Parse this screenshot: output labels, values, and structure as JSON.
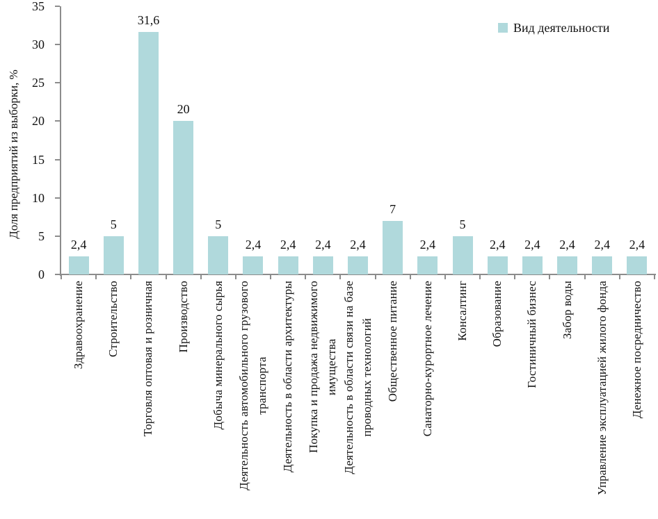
{
  "chart_data": {
    "type": "bar",
    "title": "",
    "xlabel": "",
    "ylabel": "Доля предприятий из выборки, %",
    "ylim": [
      0,
      35
    ],
    "yticks": [
      0,
      5,
      10,
      15,
      20,
      25,
      30,
      35
    ],
    "grid": false,
    "legend": {
      "position": "top-right",
      "label": "Вид деятельности",
      "swatch_color": "#b0d9dc"
    },
    "bar_color": "#b0d9dc",
    "axis_color": "#8c8c8c",
    "categories": [
      "Здравоохранение",
      "Строительство",
      "Торговля оптовая и розничная",
      "Производство",
      "Добыча минерального сырья",
      "Деятельность автомобильного грузового\nтранспорта",
      "Деятельность в области архитектуры",
      "Покупка и продажа недвижимого\nимущества",
      "Деятельность в области связи на базе\nпроводных технологий",
      "Общественное питание",
      "Санаторно-курортное лечение",
      "Консалтинг",
      "Образование",
      "Гостиничный бизнес",
      "Забор воды",
      "Управление эксплуатацией жилого фонда",
      "Денежное посредничество"
    ],
    "values": [
      2.4,
      5,
      31.6,
      20,
      5,
      2.4,
      2.4,
      2.4,
      2.4,
      7,
      2.4,
      5,
      2.4,
      2.4,
      2.4,
      2.4,
      2.4
    ],
    "value_labels": [
      "2,4",
      "5",
      "31,6",
      "20",
      "5",
      "2,4",
      "2,4",
      "2,4",
      "2,4",
      "7",
      "2,4",
      "5",
      "2,4",
      "2,4",
      "2,4",
      "2,4",
      "2,4"
    ]
  }
}
